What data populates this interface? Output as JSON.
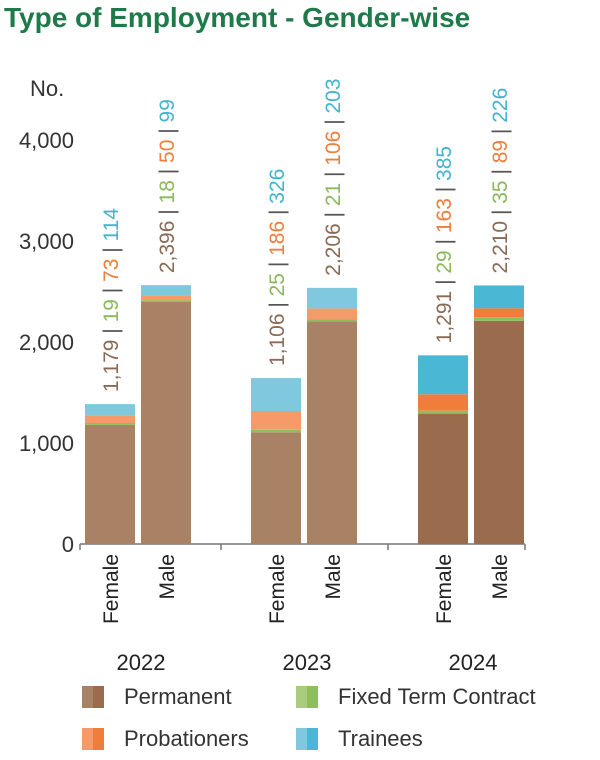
{
  "title": "Type of Employment - Gender-wise",
  "colors": {
    "permanent": "#a98265",
    "permanent_2024": "#9b6b4e",
    "fixed_term": "#8fbf5a",
    "probationers": "#f59a68",
    "probationers_2024": "#ef7d3b",
    "trainees": "#7fc8de",
    "trainees_2024": "#4ab7d4",
    "label_permanent": "#8a6a55",
    "label_fixed": "#8ab85a",
    "label_probationers": "#ef7d3b",
    "label_trainees": "#43b3d0"
  },
  "chart_data": {
    "type": "bar",
    "stacked": true,
    "ylabel": "No.",
    "ylim": [
      0,
      4000
    ],
    "yticks": [
      "0",
      "1,000",
      "2,000",
      "3,000",
      "4,000"
    ],
    "groups": [
      {
        "year": "2022",
        "bars": [
          {
            "category": "Female",
            "permanent": 1179,
            "fixed_term": 19,
            "probationers": 73,
            "trainees": 114,
            "label_parts": [
              "1,179",
              "19",
              "73",
              "114"
            ]
          },
          {
            "category": "Male",
            "permanent": 2396,
            "fixed_term": 18,
            "probationers": 50,
            "trainees": 99,
            "label_parts": [
              "2,396",
              "18",
              "50",
              "99"
            ]
          }
        ]
      },
      {
        "year": "2023",
        "bars": [
          {
            "category": "Female",
            "permanent": 1106,
            "fixed_term": 25,
            "probationers": 186,
            "trainees": 326,
            "label_parts": [
              "1,106",
              "25",
              "186",
              "326"
            ]
          },
          {
            "category": "Male",
            "permanent": 2206,
            "fixed_term": 21,
            "probationers": 106,
            "trainees": 203,
            "label_parts": [
              "2,206",
              "21",
              "106",
              "203"
            ]
          }
        ]
      },
      {
        "year": "2024",
        "bars": [
          {
            "category": "Female",
            "permanent": 1291,
            "fixed_term": 29,
            "probationers": 163,
            "trainees": 385,
            "label_parts": [
              "1,291",
              "29",
              "163",
              "385"
            ]
          },
          {
            "category": "Male",
            "permanent": 2210,
            "fixed_term": 35,
            "probationers": 89,
            "trainees": 226,
            "label_parts": [
              "2,210",
              "35",
              "89",
              "226"
            ]
          }
        ]
      }
    ],
    "legend": [
      {
        "key": "permanent",
        "label": "Permanent"
      },
      {
        "key": "fixed_term",
        "label": "Fixed Term Contract"
      },
      {
        "key": "probationers",
        "label": "Probationers"
      },
      {
        "key": "trainees",
        "label": "Trainees"
      }
    ],
    "separator": "|"
  }
}
